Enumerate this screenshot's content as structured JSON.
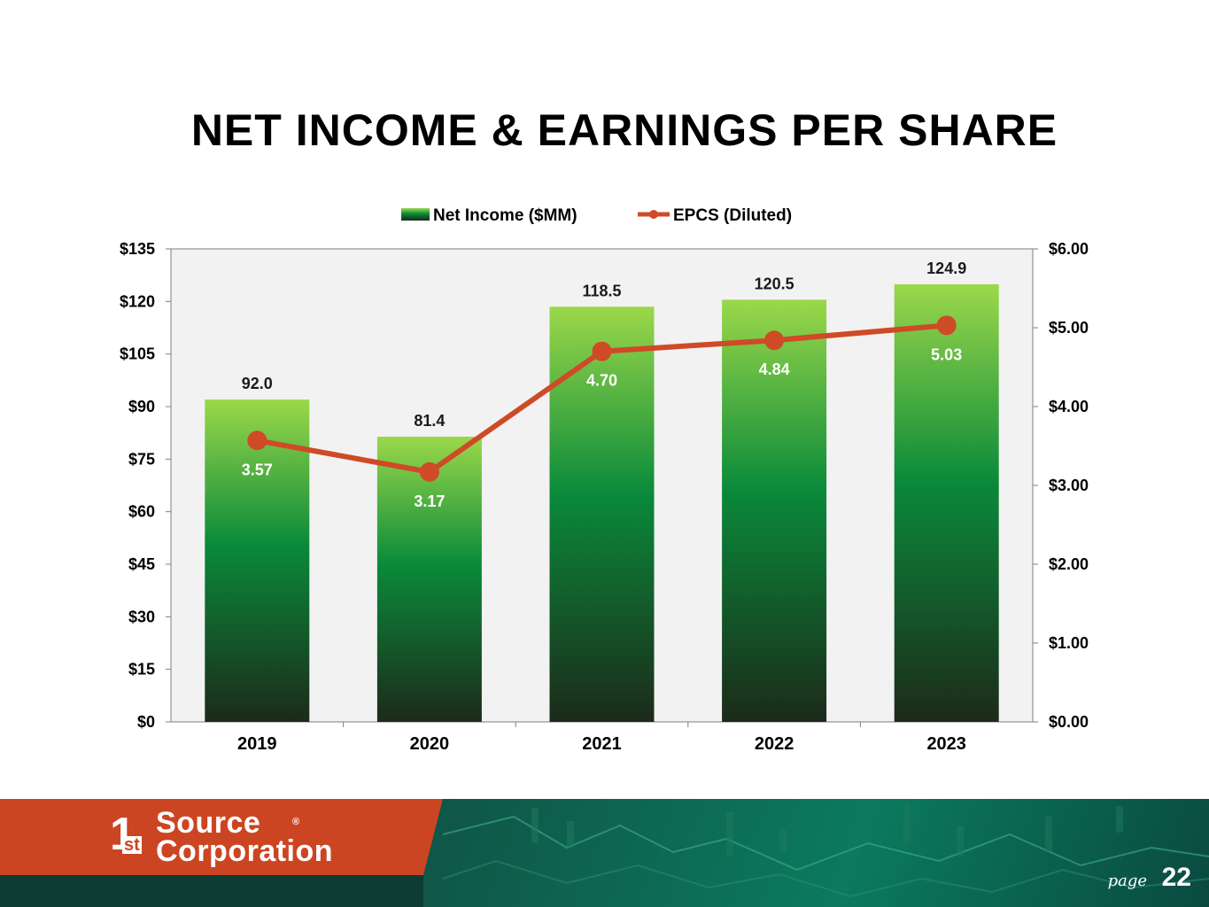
{
  "title": "NET INCOME & EARNINGS PER SHARE",
  "chart_data": {
    "type": "bar",
    "categories": [
      "2019",
      "2020",
      "2021",
      "2022",
      "2023"
    ],
    "series": [
      {
        "name": "Net Income ($MM)",
        "type": "bar",
        "axis": "left",
        "values": [
          92.0,
          81.4,
          118.5,
          120.5,
          124.9
        ],
        "labels": [
          "92.0",
          "81.4",
          "118.5",
          "120.5",
          "124.9"
        ]
      },
      {
        "name": "EPCS (Diluted)",
        "type": "line",
        "axis": "right",
        "values": [
          3.57,
          3.17,
          4.7,
          4.84,
          5.03
        ],
        "labels": [
          "3.57",
          "3.17",
          "4.70",
          "4.84",
          "5.03"
        ]
      }
    ],
    "y_left": {
      "range": [
        0,
        135
      ],
      "ticks": [
        "$0",
        "$15",
        "$30",
        "$45",
        "$60",
        "$75",
        "$90",
        "$105",
        "$120",
        "$135"
      ]
    },
    "y_right": {
      "range": [
        0,
        6
      ],
      "ticks": [
        "$0.00",
        "$1.00",
        "$2.00",
        "$3.00",
        "$4.00",
        "$5.00",
        "$6.00"
      ]
    },
    "legend_position": "top",
    "grid": false,
    "colors": {
      "line": "#cf4a26",
      "bar_top": "#9bd84a",
      "bar_mid": "#0a8a3a",
      "bar_bottom": "#1c2a1a",
      "plot_bg": "#f2f2f2"
    }
  },
  "footer": {
    "logo_one": "1",
    "logo_st": "st",
    "logo_source": "Source",
    "logo_corporation": "Corporation",
    "logo_reg": "®",
    "page_label": "page",
    "page_number": "22"
  }
}
